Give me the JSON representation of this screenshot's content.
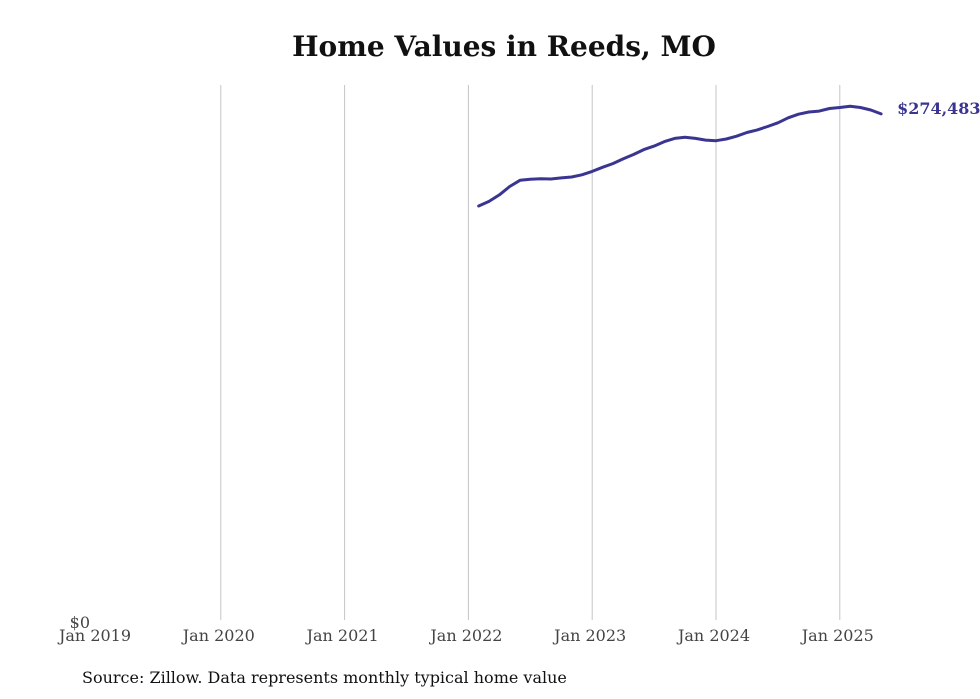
{
  "chart_data": {
    "type": "line",
    "title": "Home Values in Reeds, MO",
    "xlabel": "",
    "ylabel": "",
    "x_ticks": [
      "Jan 2019",
      "Jan 2020",
      "Jan 2021",
      "Jan 2022",
      "Jan 2023",
      "Jan 2024",
      "Jan 2025"
    ],
    "y_ticks": [
      {
        "value": 0,
        "label": "$0"
      }
    ],
    "ylim": [
      0,
      290000
    ],
    "grid": "vertical",
    "series": [
      {
        "color": "#3a3591",
        "end_label": "$274,483",
        "points": [
          {
            "x": "2022-02",
            "y": 225000
          },
          {
            "x": "2022-03",
            "y": 227500
          },
          {
            "x": "2022-04",
            "y": 231000
          },
          {
            "x": "2022-05",
            "y": 235500
          },
          {
            "x": "2022-06",
            "y": 238800
          },
          {
            "x": "2022-07",
            "y": 239400
          },
          {
            "x": "2022-08",
            "y": 239600
          },
          {
            "x": "2022-09",
            "y": 239500
          },
          {
            "x": "2022-10",
            "y": 240100
          },
          {
            "x": "2022-11",
            "y": 240600
          },
          {
            "x": "2022-12",
            "y": 241800
          },
          {
            "x": "2023-01",
            "y": 243600
          },
          {
            "x": "2023-02",
            "y": 245800
          },
          {
            "x": "2023-03",
            "y": 247800
          },
          {
            "x": "2023-04",
            "y": 250300
          },
          {
            "x": "2023-05",
            "y": 252700
          },
          {
            "x": "2023-06",
            "y": 255300
          },
          {
            "x": "2023-07",
            "y": 257200
          },
          {
            "x": "2023-08",
            "y": 259600
          },
          {
            "x": "2023-09",
            "y": 261300
          },
          {
            "x": "2023-10",
            "y": 261900
          },
          {
            "x": "2023-11",
            "y": 261300
          },
          {
            "x": "2023-12",
            "y": 260400
          },
          {
            "x": "2024-01",
            "y": 260100
          },
          {
            "x": "2024-02",
            "y": 261000
          },
          {
            "x": "2024-03",
            "y": 262500
          },
          {
            "x": "2024-04",
            "y": 264500
          },
          {
            "x": "2024-05",
            "y": 265900
          },
          {
            "x": "2024-06",
            "y": 267700
          },
          {
            "x": "2024-07",
            "y": 269700
          },
          {
            "x": "2024-08",
            "y": 272400
          },
          {
            "x": "2024-09",
            "y": 274300
          },
          {
            "x": "2024-10",
            "y": 275500
          },
          {
            "x": "2024-11",
            "y": 276000
          },
          {
            "x": "2024-12",
            "y": 277400
          },
          {
            "x": "2025-01",
            "y": 277900
          },
          {
            "x": "2025-02",
            "y": 278600
          },
          {
            "x": "2025-03",
            "y": 277900
          },
          {
            "x": "2025-04",
            "y": 276600
          },
          {
            "x": "2025-05",
            "y": 274483
          }
        ]
      }
    ]
  },
  "source_note": "Source: Zillow. Data represents monthly typical home value"
}
